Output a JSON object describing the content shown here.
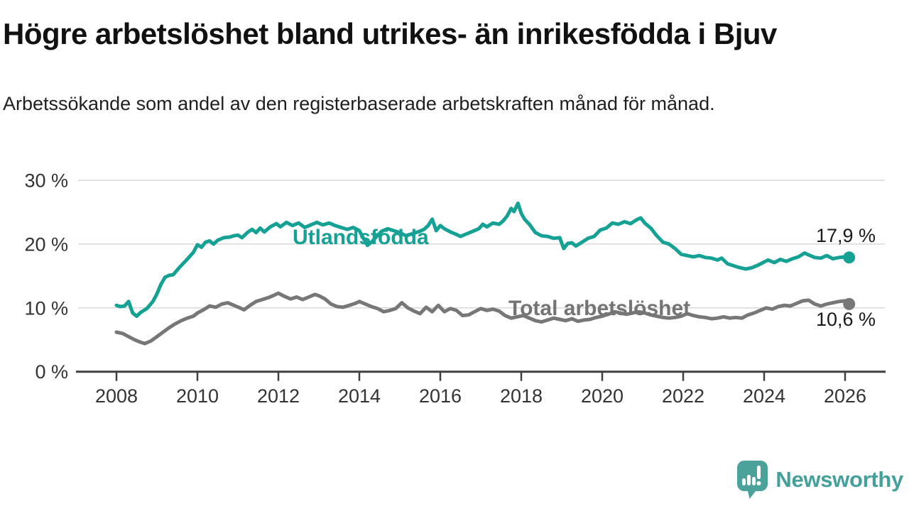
{
  "header": {
    "title": "Högre arbetslöshet bland utrikes- än inrikesfödda i Bjuv",
    "subtitle": "Arbetssökande som andel av den registerbaserade arbetskraften månad för månad."
  },
  "footer": {
    "brand": "Newsworthy"
  },
  "colors": {
    "accent_teal": "#16a195",
    "series_gray": "#777777",
    "gray_label": "#747474",
    "grid": "#d9d9d9",
    "axis": "#404040",
    "text_dark": "#1a1a1a"
  },
  "chart_data": {
    "type": "line",
    "title": "Högre arbetslöshet bland utrikes- än inrikesfödda i Bjuv",
    "subtitle": "Arbetssökande som andel av den registerbaserade arbetskraften månad för månad.",
    "unit": "%",
    "grid": "horizontal-only",
    "x_axis": {
      "tick_years": [
        2008,
        2010,
        2012,
        2014,
        2016,
        2018,
        2020,
        2022,
        2024,
        2026
      ],
      "tick_labels": [
        "2008",
        "2010",
        "2012",
        "2014",
        "2016",
        "2018",
        "2020",
        "2022",
        "2024",
        "2026"
      ]
    },
    "y_axis": {
      "tick_values": [
        0,
        10,
        20,
        30
      ],
      "tick_labels": [
        "0 %",
        "10 %",
        "20 %",
        "30 %"
      ],
      "range": [
        0,
        30
      ]
    },
    "series": [
      {
        "name": "Utlandsfödda",
        "color": "#16a195",
        "end_value": 17.9,
        "end_value_label": "17,9 %",
        "points": [
          [
            2008.0,
            10.4
          ],
          [
            2008.1,
            10.2
          ],
          [
            2008.2,
            10.3
          ],
          [
            2008.3,
            11.0
          ],
          [
            2008.4,
            9.2
          ],
          [
            2008.5,
            8.7
          ],
          [
            2008.6,
            9.3
          ],
          [
            2008.75,
            9.9
          ],
          [
            2008.9,
            11.0
          ],
          [
            2009.0,
            12.2
          ],
          [
            2009.1,
            13.7
          ],
          [
            2009.2,
            14.8
          ],
          [
            2009.3,
            15.1
          ],
          [
            2009.4,
            15.2
          ],
          [
            2009.55,
            16.3
          ],
          [
            2009.7,
            17.3
          ],
          [
            2009.8,
            18.0
          ],
          [
            2009.9,
            18.7
          ],
          [
            2010.0,
            19.9
          ],
          [
            2010.1,
            19.5
          ],
          [
            2010.2,
            20.3
          ],
          [
            2010.3,
            20.5
          ],
          [
            2010.4,
            20.0
          ],
          [
            2010.5,
            20.6
          ],
          [
            2010.65,
            21.0
          ],
          [
            2010.8,
            21.1
          ],
          [
            2010.9,
            21.3
          ],
          [
            2011.0,
            21.4
          ],
          [
            2011.1,
            21.0
          ],
          [
            2011.25,
            21.9
          ],
          [
            2011.35,
            22.3
          ],
          [
            2011.45,
            21.8
          ],
          [
            2011.55,
            22.5
          ],
          [
            2011.65,
            21.9
          ],
          [
            2011.8,
            22.7
          ],
          [
            2011.95,
            23.2
          ],
          [
            2012.05,
            22.7
          ],
          [
            2012.2,
            23.4
          ],
          [
            2012.35,
            22.9
          ],
          [
            2012.5,
            23.3
          ],
          [
            2012.65,
            22.6
          ],
          [
            2012.8,
            23.0
          ],
          [
            2012.95,
            23.4
          ],
          [
            2013.1,
            23.0
          ],
          [
            2013.25,
            23.3
          ],
          [
            2013.4,
            22.9
          ],
          [
            2013.55,
            22.6
          ],
          [
            2013.7,
            22.3
          ],
          [
            2013.85,
            22.6
          ],
          [
            2014.0,
            22.1
          ],
          [
            2014.1,
            20.9
          ],
          [
            2014.2,
            19.8
          ],
          [
            2014.3,
            20.3
          ],
          [
            2014.4,
            21.0
          ],
          [
            2014.55,
            22.0
          ],
          [
            2014.7,
            22.4
          ],
          [
            2014.85,
            22.1
          ],
          [
            2015.0,
            21.8
          ],
          [
            2015.15,
            21.3
          ],
          [
            2015.3,
            21.6
          ],
          [
            2015.45,
            21.9
          ],
          [
            2015.6,
            22.3
          ],
          [
            2015.7,
            22.9
          ],
          [
            2015.8,
            23.9
          ],
          [
            2015.9,
            22.1
          ],
          [
            2016.0,
            22.9
          ],
          [
            2016.1,
            22.4
          ],
          [
            2016.25,
            21.9
          ],
          [
            2016.4,
            21.5
          ],
          [
            2016.5,
            21.2
          ],
          [
            2016.65,
            21.6
          ],
          [
            2016.8,
            22.0
          ],
          [
            2016.95,
            22.4
          ],
          [
            2017.05,
            23.1
          ],
          [
            2017.15,
            22.7
          ],
          [
            2017.3,
            23.3
          ],
          [
            2017.45,
            23.1
          ],
          [
            2017.55,
            23.6
          ],
          [
            2017.65,
            24.4
          ],
          [
            2017.75,
            25.6
          ],
          [
            2017.82,
            25.1
          ],
          [
            2017.92,
            26.4
          ],
          [
            2018.0,
            24.8
          ],
          [
            2018.08,
            23.9
          ],
          [
            2018.2,
            23.1
          ],
          [
            2018.35,
            21.8
          ],
          [
            2018.5,
            21.3
          ],
          [
            2018.65,
            21.2
          ],
          [
            2018.8,
            20.9
          ],
          [
            2018.95,
            21.0
          ],
          [
            2019.05,
            19.3
          ],
          [
            2019.15,
            20.1
          ],
          [
            2019.25,
            20.2
          ],
          [
            2019.35,
            19.7
          ],
          [
            2019.5,
            20.3
          ],
          [
            2019.65,
            20.9
          ],
          [
            2019.8,
            21.2
          ],
          [
            2019.95,
            22.2
          ],
          [
            2020.1,
            22.5
          ],
          [
            2020.25,
            23.3
          ],
          [
            2020.4,
            23.1
          ],
          [
            2020.55,
            23.5
          ],
          [
            2020.7,
            23.2
          ],
          [
            2020.85,
            23.8
          ],
          [
            2020.95,
            24.1
          ],
          [
            2021.05,
            23.3
          ],
          [
            2021.2,
            22.5
          ],
          [
            2021.35,
            21.3
          ],
          [
            2021.5,
            20.3
          ],
          [
            2021.65,
            20.0
          ],
          [
            2021.8,
            19.3
          ],
          [
            2021.95,
            18.4
          ],
          [
            2022.1,
            18.2
          ],
          [
            2022.25,
            18.0
          ],
          [
            2022.4,
            18.2
          ],
          [
            2022.55,
            17.9
          ],
          [
            2022.7,
            17.8
          ],
          [
            2022.85,
            17.5
          ],
          [
            2022.95,
            17.8
          ],
          [
            2023.1,
            16.9
          ],
          [
            2023.25,
            16.6
          ],
          [
            2023.4,
            16.3
          ],
          [
            2023.55,
            16.1
          ],
          [
            2023.7,
            16.3
          ],
          [
            2023.85,
            16.7
          ],
          [
            2024.0,
            17.2
          ],
          [
            2024.1,
            17.5
          ],
          [
            2024.25,
            17.1
          ],
          [
            2024.4,
            17.6
          ],
          [
            2024.55,
            17.3
          ],
          [
            2024.7,
            17.7
          ],
          [
            2024.85,
            18.0
          ],
          [
            2025.0,
            18.6
          ],
          [
            2025.1,
            18.3
          ],
          [
            2025.25,
            17.9
          ],
          [
            2025.4,
            17.8
          ],
          [
            2025.55,
            18.2
          ],
          [
            2025.7,
            17.7
          ],
          [
            2025.85,
            17.9
          ],
          [
            2026.0,
            18.0
          ],
          [
            2026.1,
            17.9
          ]
        ]
      },
      {
        "name": "Total arbetslöshet",
        "color": "#777777",
        "end_value": 10.6,
        "end_value_label": "10,6 %",
        "points": [
          [
            2008.0,
            6.2
          ],
          [
            2008.15,
            6.0
          ],
          [
            2008.3,
            5.5
          ],
          [
            2008.45,
            5.0
          ],
          [
            2008.6,
            4.6
          ],
          [
            2008.7,
            4.4
          ],
          [
            2008.85,
            4.8
          ],
          [
            2009.0,
            5.5
          ],
          [
            2009.15,
            6.2
          ],
          [
            2009.3,
            6.9
          ],
          [
            2009.45,
            7.5
          ],
          [
            2009.6,
            8.0
          ],
          [
            2009.75,
            8.4
          ],
          [
            2009.9,
            8.7
          ],
          [
            2010.0,
            9.2
          ],
          [
            2010.15,
            9.7
          ],
          [
            2010.3,
            10.3
          ],
          [
            2010.45,
            10.1
          ],
          [
            2010.6,
            10.6
          ],
          [
            2010.75,
            10.8
          ],
          [
            2010.9,
            10.4
          ],
          [
            2011.05,
            10.0
          ],
          [
            2011.15,
            9.7
          ],
          [
            2011.3,
            10.4
          ],
          [
            2011.45,
            11.0
          ],
          [
            2011.6,
            11.3
          ],
          [
            2011.75,
            11.6
          ],
          [
            2011.9,
            12.0
          ],
          [
            2012.0,
            12.3
          ],
          [
            2012.15,
            11.8
          ],
          [
            2012.3,
            11.4
          ],
          [
            2012.45,
            11.7
          ],
          [
            2012.6,
            11.3
          ],
          [
            2012.75,
            11.7
          ],
          [
            2012.9,
            12.1
          ],
          [
            2013.0,
            11.9
          ],
          [
            2013.15,
            11.4
          ],
          [
            2013.3,
            10.6
          ],
          [
            2013.45,
            10.2
          ],
          [
            2013.6,
            10.1
          ],
          [
            2013.75,
            10.4
          ],
          [
            2013.9,
            10.7
          ],
          [
            2014.0,
            11.0
          ],
          [
            2014.15,
            10.6
          ],
          [
            2014.3,
            10.2
          ],
          [
            2014.45,
            9.9
          ],
          [
            2014.6,
            9.4
          ],
          [
            2014.75,
            9.6
          ],
          [
            2014.9,
            9.9
          ],
          [
            2015.05,
            10.8
          ],
          [
            2015.2,
            10.0
          ],
          [
            2015.35,
            9.5
          ],
          [
            2015.5,
            9.1
          ],
          [
            2015.65,
            10.1
          ],
          [
            2015.8,
            9.4
          ],
          [
            2015.95,
            10.4
          ],
          [
            2016.1,
            9.4
          ],
          [
            2016.25,
            9.9
          ],
          [
            2016.4,
            9.6
          ],
          [
            2016.55,
            8.8
          ],
          [
            2016.7,
            8.9
          ],
          [
            2016.85,
            9.4
          ],
          [
            2017.0,
            9.9
          ],
          [
            2017.15,
            9.6
          ],
          [
            2017.3,
            9.8
          ],
          [
            2017.45,
            9.5
          ],
          [
            2017.6,
            8.8
          ],
          [
            2017.75,
            8.4
          ],
          [
            2017.9,
            8.6
          ],
          [
            2018.05,
            8.8
          ],
          [
            2018.2,
            8.4
          ],
          [
            2018.35,
            8.0
          ],
          [
            2018.5,
            7.8
          ],
          [
            2018.65,
            8.1
          ],
          [
            2018.8,
            8.4
          ],
          [
            2018.95,
            8.2
          ],
          [
            2019.1,
            8.0
          ],
          [
            2019.25,
            8.3
          ],
          [
            2019.4,
            7.9
          ],
          [
            2019.55,
            8.1
          ],
          [
            2019.7,
            8.2
          ],
          [
            2019.85,
            8.5
          ],
          [
            2020.0,
            8.7
          ],
          [
            2020.15,
            9.0
          ],
          [
            2020.3,
            9.4
          ],
          [
            2020.45,
            9.2
          ],
          [
            2020.6,
            9.0
          ],
          [
            2020.75,
            9.2
          ],
          [
            2020.9,
            9.4
          ],
          [
            2021.05,
            9.2
          ],
          [
            2021.2,
            8.9
          ],
          [
            2021.35,
            8.7
          ],
          [
            2021.5,
            8.5
          ],
          [
            2021.65,
            8.4
          ],
          [
            2021.8,
            8.5
          ],
          [
            2021.95,
            8.7
          ],
          [
            2022.1,
            9.1
          ],
          [
            2022.25,
            8.8
          ],
          [
            2022.4,
            8.6
          ],
          [
            2022.55,
            8.5
          ],
          [
            2022.7,
            8.3
          ],
          [
            2022.85,
            8.4
          ],
          [
            2023.0,
            8.6
          ],
          [
            2023.15,
            8.4
          ],
          [
            2023.3,
            8.5
          ],
          [
            2023.45,
            8.4
          ],
          [
            2023.6,
            8.9
          ],
          [
            2023.75,
            9.2
          ],
          [
            2023.9,
            9.6
          ],
          [
            2024.05,
            10.0
          ],
          [
            2024.2,
            9.8
          ],
          [
            2024.35,
            10.2
          ],
          [
            2024.5,
            10.4
          ],
          [
            2024.65,
            10.3
          ],
          [
            2024.8,
            10.7
          ],
          [
            2024.95,
            11.1
          ],
          [
            2025.1,
            11.2
          ],
          [
            2025.25,
            10.6
          ],
          [
            2025.4,
            10.3
          ],
          [
            2025.55,
            10.6
          ],
          [
            2025.7,
            10.8
          ],
          [
            2025.85,
            11.0
          ],
          [
            2026.0,
            11.1
          ],
          [
            2026.1,
            10.6
          ]
        ]
      }
    ]
  }
}
